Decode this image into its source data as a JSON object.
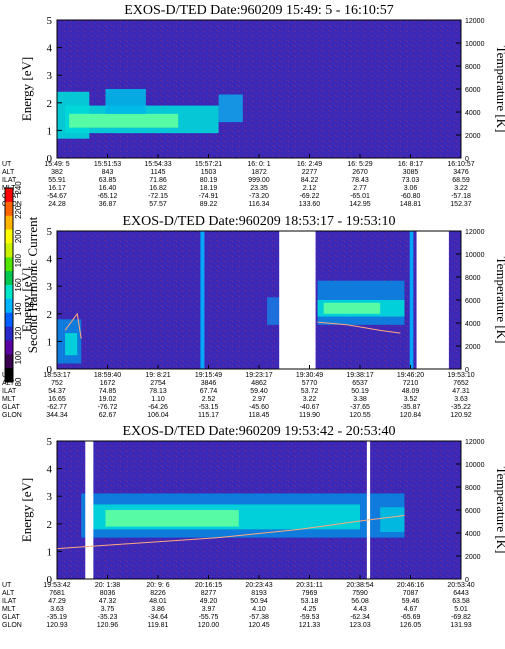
{
  "chart_data": [
    {
      "type": "heatmap",
      "title": "EXOS-D/TED   Date:960209  15:49: 5 - 16:10:57",
      "ylabel": "Energy [eV]",
      "y2label": "Temperature [K]",
      "yticks": [
        "0",
        "1",
        "2",
        "3",
        "4",
        "5"
      ],
      "y2ticks": [
        "0",
        "2000",
        "4000",
        "6000",
        "8000",
        "10000",
        "12000"
      ],
      "ylim": [
        0,
        5
      ],
      "y2lim": [
        0,
        12000
      ],
      "xticks": [
        "15:49: 5",
        "15:51:53",
        "15:54:33",
        "15:57:21",
        "16: 0: 1",
        "16: 2:49",
        "16: 5:29",
        "16: 8:17",
        "16:10:57"
      ],
      "rows": [
        {
          "label": "UT",
          "values": [
            "15:49: 5",
            "15:51:53",
            "15:54:33",
            "15:57:21",
            "16: 0: 1",
            "16: 2:49",
            "16: 5:29",
            "16: 8:17",
            "16:10:57"
          ]
        },
        {
          "label": "ALT",
          "values": [
            "382",
            "843",
            "1145",
            "1503",
            "1872",
            "2277",
            "2670",
            "3085",
            "3476"
          ]
        },
        {
          "label": "ILAT",
          "values": [
            "55.91",
            "63.85",
            "71.86",
            "80.19",
            "999.00",
            "84.22",
            "78.43",
            "73.03",
            "68.59"
          ]
        },
        {
          "label": "MLT",
          "values": [
            "16.17",
            "16.40",
            "16.82",
            "18.19",
            "23.35",
            "2.12",
            "2.77",
            "3.06",
            "3.22"
          ]
        },
        {
          "label": "GLAT",
          "values": [
            "-54.67",
            "-65.12",
            "-72.15",
            "-74.91",
            "-73.20",
            "-69.22",
            "-65.01",
            "-60.80",
            "-57.18"
          ]
        },
        {
          "label": "GLON",
          "values": [
            "24.28",
            "36.87",
            "57.57",
            "89.22",
            "116.34",
            "133.60",
            "142.95",
            "148.81",
            "152.37"
          ]
        }
      ]
    },
    {
      "type": "heatmap",
      "title": "EXOS-D/TED   Date:960209  18:53:17 - 19:53:10",
      "ylabel": "Energy [eV]",
      "y2label": "Temperature [K]",
      "yticks": [
        "0",
        "1",
        "2",
        "3",
        "4",
        "5"
      ],
      "y2ticks": [
        "0",
        "2000",
        "4000",
        "6000",
        "8000",
        "10000",
        "12000"
      ],
      "ylim": [
        0,
        5
      ],
      "y2lim": [
        0,
        12000
      ],
      "xticks": [
        "18:53:17",
        "18:59:40",
        "19: 8:21",
        "19:15:49",
        "19:23:17",
        "19:30:49",
        "19:38:17",
        "19:46:20",
        "19:53:10"
      ],
      "rows": [
        {
          "label": "UT",
          "values": [
            "18:53:17",
            "18:59:40",
            "19: 8:21",
            "19:15:49",
            "19:23:17",
            "19:30:49",
            "19:38:17",
            "19:46:20",
            "19:53:10"
          ]
        },
        {
          "label": "ALT",
          "values": [
            "752",
            "1672",
            "2754",
            "3846",
            "4862",
            "5770",
            "6537",
            "7210",
            "7652"
          ]
        },
        {
          "label": "ILAT",
          "values": [
            "54.37",
            "74.85",
            "78.13",
            "67.74",
            "59.40",
            "53.72",
            "50.19",
            "48.09",
            "47.31"
          ]
        },
        {
          "label": "MLT",
          "values": [
            "16.65",
            "19.02",
            "1.10",
            "2.52",
            "2.97",
            "3.22",
            "3.38",
            "3.52",
            "3.63"
          ]
        },
        {
          "label": "GLAT",
          "values": [
            "-62.77",
            "-76.72",
            "-64.26",
            "-53.15",
            "-45.60",
            "-40.67",
            "-37.65",
            "-35.87",
            "-35.22"
          ]
        },
        {
          "label": "GLON",
          "values": [
            "344.34",
            "62.67",
            "106.04",
            "115.17",
            "118.45",
            "119.90",
            "120.55",
            "120.84",
            "120.92"
          ]
        }
      ]
    },
    {
      "type": "heatmap",
      "title": "EXOS-D/TED   Date:960209  19:53:42 - 20:53:40",
      "ylabel": "Energy [eV]",
      "y2label": "Temperature [K]",
      "yticks": [
        "0",
        "1",
        "2",
        "3",
        "4",
        "5"
      ],
      "y2ticks": [
        "0",
        "2000",
        "4000",
        "6000",
        "8000",
        "10000",
        "12000"
      ],
      "ylim": [
        0,
        5
      ],
      "y2lim": [
        0,
        12000
      ],
      "xticks": [
        "19:53:42",
        "20: 1:38",
        "20: 9: 6",
        "20:16:15",
        "20:23:43",
        "20:31:11",
        "20:38:54",
        "20:46:16",
        "20:53:40"
      ],
      "rows": [
        {
          "label": "UT",
          "values": [
            "19:53:42",
            "20: 1:38",
            "20: 9: 6",
            "20:16:15",
            "20:23:43",
            "20:31:11",
            "20:38:54",
            "20:46:16",
            "20:53:40"
          ]
        },
        {
          "label": "ALT",
          "values": [
            "7681",
            "8036",
            "8226",
            "8277",
            "8193",
            "7969",
            "7590",
            "7087",
            "6443"
          ]
        },
        {
          "label": "ILAT",
          "values": [
            "47.29",
            "47.32",
            "48.01",
            "49.20",
            "50.94",
            "53.18",
            "56.08",
            "59.46",
            "63.58"
          ]
        },
        {
          "label": "MLT",
          "values": [
            "3.63",
            "3.75",
            "3.86",
            "3.97",
            "4.10",
            "4.25",
            "4.43",
            "4.67",
            "5.01"
          ]
        },
        {
          "label": "GLAT",
          "values": [
            "-35.19",
            "-35.23",
            "-34.64",
            "-55.75",
            "-57.38",
            "-59.53",
            "-62.34",
            "-65.69",
            "-69.82"
          ]
        },
        {
          "label": "GLON",
          "values": [
            "120.93",
            "120.96",
            "119.81",
            "120.00",
            "120.45",
            "121.33",
            "123.03",
            "126.05",
            "131.93"
          ]
        }
      ]
    }
  ],
  "colorbar": {
    "label": "Second Harmonic Current",
    "ticks": [
      "80",
      "100",
      "120",
      "140",
      "160",
      "180",
      "200",
      "220",
      "240"
    ],
    "colors": [
      "#000000",
      "#3a0050",
      "#5a00a0",
      "#2828c8",
      "#0060ff",
      "#00b4ff",
      "#00e6c8",
      "#00c850",
      "#50e600",
      "#c8f000",
      "#ffff00",
      "#ffb400",
      "#ff6400",
      "#ff0000"
    ]
  },
  "colors": {
    "background": "#3c28b4",
    "band": "#00d8d8",
    "band_core": "#60ffa0",
    "gap": "#ffffff",
    "trace": "#ffa880"
  }
}
